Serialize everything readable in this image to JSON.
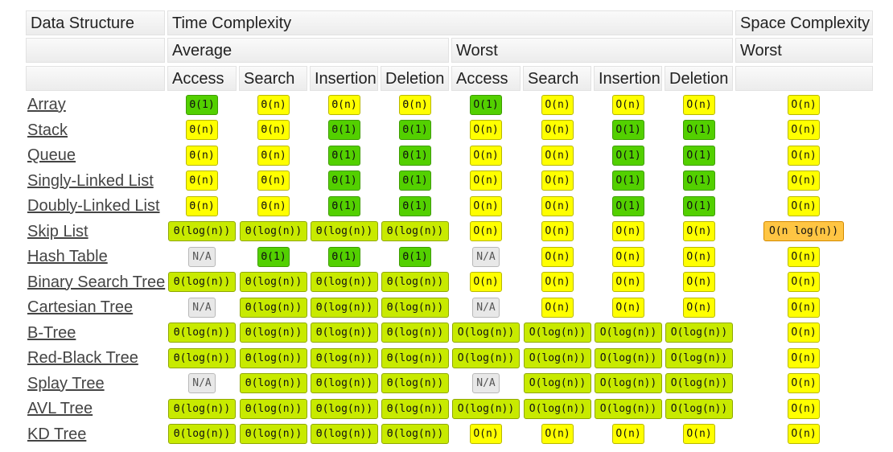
{
  "colors": {
    "green": "#53d000",
    "lime": "#c8ea00",
    "yellow": "#ffff00",
    "orange": "#ffc543",
    "gray": "#e8e8e8"
  },
  "headers": {
    "data_structure": "Data Structure",
    "time_complexity": "Time Complexity",
    "space_complexity": "Space Complexity",
    "average": "Average",
    "worst": "Worst",
    "space_worst": "Worst",
    "columns": [
      "Access",
      "Search",
      "Insertion",
      "Deletion",
      "Access",
      "Search",
      "Insertion",
      "Deletion"
    ]
  },
  "rows": [
    {
      "name": "Array",
      "cells": [
        {
          "text": "Θ(1)",
          "color": "green"
        },
        {
          "text": "Θ(n)",
          "color": "yellow"
        },
        {
          "text": "Θ(n)",
          "color": "yellow"
        },
        {
          "text": "Θ(n)",
          "color": "yellow"
        },
        {
          "text": "O(1)",
          "color": "green"
        },
        {
          "text": "O(n)",
          "color": "yellow"
        },
        {
          "text": "O(n)",
          "color": "yellow"
        },
        {
          "text": "O(n)",
          "color": "yellow"
        },
        {
          "text": "O(n)",
          "color": "yellow"
        }
      ]
    },
    {
      "name": "Stack",
      "cells": [
        {
          "text": "Θ(n)",
          "color": "yellow"
        },
        {
          "text": "Θ(n)",
          "color": "yellow"
        },
        {
          "text": "Θ(1)",
          "color": "green"
        },
        {
          "text": "Θ(1)",
          "color": "green"
        },
        {
          "text": "O(n)",
          "color": "yellow"
        },
        {
          "text": "O(n)",
          "color": "yellow"
        },
        {
          "text": "O(1)",
          "color": "green"
        },
        {
          "text": "O(1)",
          "color": "green"
        },
        {
          "text": "O(n)",
          "color": "yellow"
        }
      ]
    },
    {
      "name": "Queue",
      "cells": [
        {
          "text": "Θ(n)",
          "color": "yellow"
        },
        {
          "text": "Θ(n)",
          "color": "yellow"
        },
        {
          "text": "Θ(1)",
          "color": "green"
        },
        {
          "text": "Θ(1)",
          "color": "green"
        },
        {
          "text": "O(n)",
          "color": "yellow"
        },
        {
          "text": "O(n)",
          "color": "yellow"
        },
        {
          "text": "O(1)",
          "color": "green"
        },
        {
          "text": "O(1)",
          "color": "green"
        },
        {
          "text": "O(n)",
          "color": "yellow"
        }
      ]
    },
    {
      "name": "Singly-Linked List",
      "cells": [
        {
          "text": "Θ(n)",
          "color": "yellow"
        },
        {
          "text": "Θ(n)",
          "color": "yellow"
        },
        {
          "text": "Θ(1)",
          "color": "green"
        },
        {
          "text": "Θ(1)",
          "color": "green"
        },
        {
          "text": "O(n)",
          "color": "yellow"
        },
        {
          "text": "O(n)",
          "color": "yellow"
        },
        {
          "text": "O(1)",
          "color": "green"
        },
        {
          "text": "O(1)",
          "color": "green"
        },
        {
          "text": "O(n)",
          "color": "yellow"
        }
      ]
    },
    {
      "name": "Doubly-Linked List",
      "cells": [
        {
          "text": "Θ(n)",
          "color": "yellow"
        },
        {
          "text": "Θ(n)",
          "color": "yellow"
        },
        {
          "text": "Θ(1)",
          "color": "green"
        },
        {
          "text": "Θ(1)",
          "color": "green"
        },
        {
          "text": "O(n)",
          "color": "yellow"
        },
        {
          "text": "O(n)",
          "color": "yellow"
        },
        {
          "text": "O(1)",
          "color": "green"
        },
        {
          "text": "O(1)",
          "color": "green"
        },
        {
          "text": "O(n)",
          "color": "yellow"
        }
      ]
    },
    {
      "name": "Skip List",
      "cells": [
        {
          "text": "Θ(log(n))",
          "color": "lime"
        },
        {
          "text": "Θ(log(n))",
          "color": "lime"
        },
        {
          "text": "Θ(log(n))",
          "color": "lime"
        },
        {
          "text": "Θ(log(n))",
          "color": "lime"
        },
        {
          "text": "O(n)",
          "color": "yellow"
        },
        {
          "text": "O(n)",
          "color": "yellow"
        },
        {
          "text": "O(n)",
          "color": "yellow"
        },
        {
          "text": "O(n)",
          "color": "yellow"
        },
        {
          "text": "O(n log(n))",
          "color": "orange"
        }
      ]
    },
    {
      "name": "Hash Table",
      "cells": [
        {
          "text": "N/A",
          "color": "gray"
        },
        {
          "text": "Θ(1)",
          "color": "green"
        },
        {
          "text": "Θ(1)",
          "color": "green"
        },
        {
          "text": "Θ(1)",
          "color": "green"
        },
        {
          "text": "N/A",
          "color": "gray"
        },
        {
          "text": "O(n)",
          "color": "yellow"
        },
        {
          "text": "O(n)",
          "color": "yellow"
        },
        {
          "text": "O(n)",
          "color": "yellow"
        },
        {
          "text": "O(n)",
          "color": "yellow"
        }
      ]
    },
    {
      "name": "Binary Search Tree",
      "cells": [
        {
          "text": "Θ(log(n))",
          "color": "lime"
        },
        {
          "text": "Θ(log(n))",
          "color": "lime"
        },
        {
          "text": "Θ(log(n))",
          "color": "lime"
        },
        {
          "text": "Θ(log(n))",
          "color": "lime"
        },
        {
          "text": "O(n)",
          "color": "yellow"
        },
        {
          "text": "O(n)",
          "color": "yellow"
        },
        {
          "text": "O(n)",
          "color": "yellow"
        },
        {
          "text": "O(n)",
          "color": "yellow"
        },
        {
          "text": "O(n)",
          "color": "yellow"
        }
      ]
    },
    {
      "name": "Cartesian Tree",
      "cells": [
        {
          "text": "N/A",
          "color": "gray"
        },
        {
          "text": "Θ(log(n))",
          "color": "lime"
        },
        {
          "text": "Θ(log(n))",
          "color": "lime"
        },
        {
          "text": "Θ(log(n))",
          "color": "lime"
        },
        {
          "text": "N/A",
          "color": "gray"
        },
        {
          "text": "O(n)",
          "color": "yellow"
        },
        {
          "text": "O(n)",
          "color": "yellow"
        },
        {
          "text": "O(n)",
          "color": "yellow"
        },
        {
          "text": "O(n)",
          "color": "yellow"
        }
      ]
    },
    {
      "name": "B-Tree",
      "cells": [
        {
          "text": "Θ(log(n))",
          "color": "lime"
        },
        {
          "text": "Θ(log(n))",
          "color": "lime"
        },
        {
          "text": "Θ(log(n))",
          "color": "lime"
        },
        {
          "text": "Θ(log(n))",
          "color": "lime"
        },
        {
          "text": "O(log(n))",
          "color": "lime"
        },
        {
          "text": "O(log(n))",
          "color": "lime"
        },
        {
          "text": "O(log(n))",
          "color": "lime"
        },
        {
          "text": "O(log(n))",
          "color": "lime"
        },
        {
          "text": "O(n)",
          "color": "yellow"
        }
      ]
    },
    {
      "name": "Red-Black Tree",
      "cells": [
        {
          "text": "Θ(log(n))",
          "color": "lime"
        },
        {
          "text": "Θ(log(n))",
          "color": "lime"
        },
        {
          "text": "Θ(log(n))",
          "color": "lime"
        },
        {
          "text": "Θ(log(n))",
          "color": "lime"
        },
        {
          "text": "O(log(n))",
          "color": "lime"
        },
        {
          "text": "O(log(n))",
          "color": "lime"
        },
        {
          "text": "O(log(n))",
          "color": "lime"
        },
        {
          "text": "O(log(n))",
          "color": "lime"
        },
        {
          "text": "O(n)",
          "color": "yellow"
        }
      ]
    },
    {
      "name": "Splay Tree",
      "cells": [
        {
          "text": "N/A",
          "color": "gray"
        },
        {
          "text": "Θ(log(n))",
          "color": "lime"
        },
        {
          "text": "Θ(log(n))",
          "color": "lime"
        },
        {
          "text": "Θ(log(n))",
          "color": "lime"
        },
        {
          "text": "N/A",
          "color": "gray"
        },
        {
          "text": "O(log(n))",
          "color": "lime"
        },
        {
          "text": "O(log(n))",
          "color": "lime"
        },
        {
          "text": "O(log(n))",
          "color": "lime"
        },
        {
          "text": "O(n)",
          "color": "yellow"
        }
      ]
    },
    {
      "name": "AVL Tree",
      "cells": [
        {
          "text": "Θ(log(n))",
          "color": "lime"
        },
        {
          "text": "Θ(log(n))",
          "color": "lime"
        },
        {
          "text": "Θ(log(n))",
          "color": "lime"
        },
        {
          "text": "Θ(log(n))",
          "color": "lime"
        },
        {
          "text": "O(log(n))",
          "color": "lime"
        },
        {
          "text": "O(log(n))",
          "color": "lime"
        },
        {
          "text": "O(log(n))",
          "color": "lime"
        },
        {
          "text": "O(log(n))",
          "color": "lime"
        },
        {
          "text": "O(n)",
          "color": "yellow"
        }
      ]
    },
    {
      "name": "KD Tree",
      "cells": [
        {
          "text": "Θ(log(n))",
          "color": "lime"
        },
        {
          "text": "Θ(log(n))",
          "color": "lime"
        },
        {
          "text": "Θ(log(n))",
          "color": "lime"
        },
        {
          "text": "Θ(log(n))",
          "color": "lime"
        },
        {
          "text": "O(n)",
          "color": "yellow"
        },
        {
          "text": "O(n)",
          "color": "yellow"
        },
        {
          "text": "O(n)",
          "color": "yellow"
        },
        {
          "text": "O(n)",
          "color": "yellow"
        },
        {
          "text": "O(n)",
          "color": "yellow"
        }
      ]
    }
  ]
}
